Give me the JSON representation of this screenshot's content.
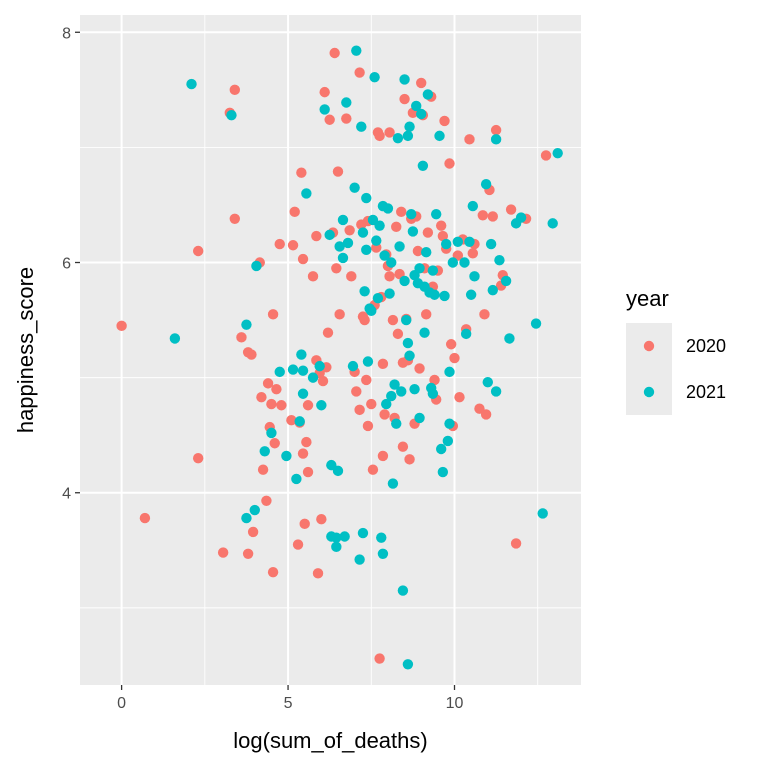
{
  "chart_data": {
    "type": "scatter",
    "title": "",
    "xlabel": "log(sum_of_deaths)",
    "ylabel": "happiness_score",
    "xlim": [
      -1.25,
      13.8
    ],
    "ylim": [
      2.33,
      8.15
    ],
    "xticks": [
      0,
      5,
      10
    ],
    "yticks": [
      4,
      6,
      8
    ],
    "x_minor_ticks": [
      2.5,
      7.5,
      12.5
    ],
    "y_minor_ticks": [
      3,
      5,
      7
    ],
    "grid": true,
    "legend": {
      "title": "year",
      "placement": "right"
    },
    "series": [
      {
        "name": "2020",
        "color": "#F8766D",
        "points": [
          [
            0.0,
            5.45
          ],
          [
            0.7,
            3.78
          ],
          [
            2.3,
            6.1
          ],
          [
            2.3,
            4.3
          ],
          [
            3.05,
            3.48
          ],
          [
            3.25,
            7.3
          ],
          [
            3.4,
            7.5
          ],
          [
            3.4,
            6.38
          ],
          [
            3.6,
            5.35
          ],
          [
            3.8,
            5.22
          ],
          [
            3.8,
            3.47
          ],
          [
            3.9,
            5.2
          ],
          [
            3.95,
            3.66
          ],
          [
            4.15,
            6.0
          ],
          [
            4.2,
            4.83
          ],
          [
            4.25,
            4.2
          ],
          [
            4.35,
            3.93
          ],
          [
            4.4,
            4.95
          ],
          [
            4.45,
            4.57
          ],
          [
            4.5,
            4.77
          ],
          [
            4.55,
            5.55
          ],
          [
            4.55,
            3.31
          ],
          [
            4.6,
            4.43
          ],
          [
            4.65,
            4.9
          ],
          [
            4.75,
            6.16
          ],
          [
            4.8,
            4.76
          ],
          [
            5.1,
            4.63
          ],
          [
            5.15,
            6.15
          ],
          [
            5.2,
            6.44
          ],
          [
            5.3,
            3.55
          ],
          [
            5.35,
            4.61
          ],
          [
            5.4,
            6.78
          ],
          [
            5.45,
            6.03
          ],
          [
            5.45,
            4.34
          ],
          [
            5.5,
            3.73
          ],
          [
            5.55,
            4.44
          ],
          [
            5.6,
            4.76
          ],
          [
            5.6,
            4.18
          ],
          [
            5.75,
            5.88
          ],
          [
            5.85,
            6.23
          ],
          [
            5.85,
            5.15
          ],
          [
            5.9,
            3.3
          ],
          [
            5.95,
            5.04
          ],
          [
            6.0,
            3.77
          ],
          [
            6.05,
            4.97
          ],
          [
            6.1,
            7.48
          ],
          [
            6.15,
            5.09
          ],
          [
            6.2,
            5.39
          ],
          [
            6.25,
            7.24
          ],
          [
            6.35,
            6.26
          ],
          [
            6.4,
            7.82
          ],
          [
            6.45,
            5.95
          ],
          [
            6.5,
            6.79
          ],
          [
            6.55,
            5.55
          ],
          [
            6.75,
            7.25
          ],
          [
            6.85,
            6.28
          ],
          [
            6.9,
            5.88
          ],
          [
            7.0,
            5.05
          ],
          [
            7.05,
            4.88
          ],
          [
            7.15,
            7.65
          ],
          [
            7.15,
            4.72
          ],
          [
            7.2,
            6.33
          ],
          [
            7.25,
            5.53
          ],
          [
            7.3,
            5.5
          ],
          [
            7.35,
            4.98
          ],
          [
            7.4,
            6.36
          ],
          [
            7.4,
            4.58
          ],
          [
            7.5,
            4.77
          ],
          [
            7.55,
            4.2
          ],
          [
            7.6,
            5.63
          ],
          [
            7.65,
            6.13
          ],
          [
            7.7,
            7.13
          ],
          [
            7.75,
            7.1
          ],
          [
            7.75,
            2.56
          ],
          [
            7.8,
            5.7
          ],
          [
            7.85,
            5.12
          ],
          [
            7.85,
            4.32
          ],
          [
            7.9,
            4.68
          ],
          [
            7.95,
            6.07
          ],
          [
            8.0,
            5.97
          ],
          [
            8.05,
            7.13
          ],
          [
            8.05,
            5.88
          ],
          [
            8.15,
            5.5
          ],
          [
            8.2,
            4.65
          ],
          [
            8.25,
            6.31
          ],
          [
            8.3,
            5.38
          ],
          [
            8.35,
            5.9
          ],
          [
            8.4,
            6.44
          ],
          [
            8.45,
            5.13
          ],
          [
            8.45,
            4.4
          ],
          [
            8.5,
            7.42
          ],
          [
            8.55,
            5.51
          ],
          [
            8.6,
            5.15
          ],
          [
            8.65,
            4.29
          ],
          [
            8.7,
            6.38
          ],
          [
            8.75,
            7.3
          ],
          [
            8.8,
            4.6
          ],
          [
            8.85,
            6.4
          ],
          [
            8.9,
            6.1
          ],
          [
            8.95,
            5.08
          ],
          [
            9.0,
            7.56
          ],
          [
            9.05,
            7.28
          ],
          [
            9.1,
            5.95
          ],
          [
            9.15,
            5.55
          ],
          [
            9.2,
            6.26
          ],
          [
            9.3,
            7.44
          ],
          [
            9.35,
            5.79
          ],
          [
            9.4,
            4.98
          ],
          [
            9.45,
            4.81
          ],
          [
            9.5,
            5.93
          ],
          [
            9.6,
            6.32
          ],
          [
            9.65,
            6.23
          ],
          [
            9.7,
            7.23
          ],
          [
            9.75,
            6.12
          ],
          [
            9.85,
            6.86
          ],
          [
            9.9,
            5.29
          ],
          [
            9.95,
            4.58
          ],
          [
            10.0,
            5.17
          ],
          [
            10.1,
            6.06
          ],
          [
            10.15,
            4.83
          ],
          [
            10.25,
            6.2
          ],
          [
            10.35,
            5.42
          ],
          [
            10.45,
            7.07
          ],
          [
            10.55,
            6.08
          ],
          [
            10.6,
            6.16
          ],
          [
            10.75,
            4.73
          ],
          [
            10.85,
            6.41
          ],
          [
            10.9,
            5.55
          ],
          [
            10.95,
            4.68
          ],
          [
            11.05,
            6.63
          ],
          [
            11.15,
            6.4
          ],
          [
            11.25,
            7.15
          ],
          [
            11.4,
            5.8
          ],
          [
            11.45,
            5.89
          ],
          [
            11.7,
            6.46
          ],
          [
            11.85,
            3.56
          ],
          [
            12.15,
            6.38
          ],
          [
            12.75,
            6.93
          ]
        ]
      },
      {
        "name": "2021",
        "color": "#00BFC4",
        "points": [
          [
            1.6,
            5.34
          ],
          [
            2.1,
            7.55
          ],
          [
            3.3,
            7.28
          ],
          [
            3.75,
            5.46
          ],
          [
            3.75,
            3.78
          ],
          [
            4.0,
            3.85
          ],
          [
            4.05,
            5.97
          ],
          [
            4.3,
            4.36
          ],
          [
            4.5,
            4.52
          ],
          [
            4.75,
            5.05
          ],
          [
            4.95,
            4.32
          ],
          [
            5.15,
            5.07
          ],
          [
            5.25,
            4.12
          ],
          [
            5.35,
            4.62
          ],
          [
            5.4,
            5.2
          ],
          [
            5.45,
            4.86
          ],
          [
            5.45,
            5.06
          ],
          [
            5.55,
            6.6
          ],
          [
            5.75,
            5.0
          ],
          [
            5.95,
            5.1
          ],
          [
            6.0,
            4.76
          ],
          [
            6.1,
            7.33
          ],
          [
            6.25,
            6.24
          ],
          [
            6.3,
            4.24
          ],
          [
            6.3,
            3.62
          ],
          [
            6.45,
            3.61
          ],
          [
            6.45,
            3.53
          ],
          [
            6.5,
            4.19
          ],
          [
            6.55,
            6.14
          ],
          [
            6.65,
            6.37
          ],
          [
            6.65,
            6.04
          ],
          [
            6.7,
            3.62
          ],
          [
            6.75,
            7.39
          ],
          [
            6.8,
            6.17
          ],
          [
            6.95,
            5.1
          ],
          [
            7.0,
            6.65
          ],
          [
            7.05,
            7.84
          ],
          [
            7.15,
            3.42
          ],
          [
            7.2,
            7.18
          ],
          [
            7.25,
            6.26
          ],
          [
            7.25,
            3.65
          ],
          [
            7.3,
            5.75
          ],
          [
            7.35,
            6.56
          ],
          [
            7.35,
            6.11
          ],
          [
            7.4,
            5.14
          ],
          [
            7.45,
            5.6
          ],
          [
            7.5,
            5.58
          ],
          [
            7.55,
            6.37
          ],
          [
            7.6,
            7.61
          ],
          [
            7.65,
            6.19
          ],
          [
            7.7,
            5.69
          ],
          [
            7.75,
            6.32
          ],
          [
            7.8,
            3.61
          ],
          [
            7.85,
            6.49
          ],
          [
            7.85,
            3.47
          ],
          [
            7.9,
            6.06
          ],
          [
            7.95,
            4.77
          ],
          [
            8.0,
            6.47
          ],
          [
            8.05,
            5.73
          ],
          [
            8.1,
            6.0
          ],
          [
            8.1,
            4.84
          ],
          [
            8.15,
            4.08
          ],
          [
            8.2,
            4.94
          ],
          [
            8.25,
            4.6
          ],
          [
            8.3,
            7.08
          ],
          [
            8.35,
            6.14
          ],
          [
            8.4,
            4.88
          ],
          [
            8.45,
            3.15
          ],
          [
            8.5,
            7.59
          ],
          [
            8.5,
            5.84
          ],
          [
            8.55,
            5.5
          ],
          [
            8.6,
            7.1
          ],
          [
            8.6,
            5.3
          ],
          [
            8.65,
            7.18
          ],
          [
            8.65,
            5.19
          ],
          [
            8.6,
            2.51
          ],
          [
            8.7,
            6.42
          ],
          [
            8.75,
            6.27
          ],
          [
            8.8,
            5.89
          ],
          [
            8.8,
            4.9
          ],
          [
            8.85,
            7.36
          ],
          [
            8.9,
            5.82
          ],
          [
            8.95,
            5.95
          ],
          [
            8.95,
            4.65
          ],
          [
            9.0,
            7.29
          ],
          [
            9.05,
            6.84
          ],
          [
            9.1,
            5.79
          ],
          [
            9.1,
            5.39
          ],
          [
            9.15,
            6.09
          ],
          [
            9.2,
            7.46
          ],
          [
            9.25,
            5.74
          ],
          [
            9.3,
            4.91
          ],
          [
            9.35,
            5.93
          ],
          [
            9.35,
            4.86
          ],
          [
            9.4,
            5.72
          ],
          [
            9.45,
            6.42
          ],
          [
            9.55,
            7.1
          ],
          [
            9.6,
            4.38
          ],
          [
            9.65,
            4.18
          ],
          [
            9.7,
            5.71
          ],
          [
            9.75,
            6.16
          ],
          [
            9.8,
            4.45
          ],
          [
            9.85,
            4.6
          ],
          [
            9.85,
            5.05
          ],
          [
            9.95,
            6.0
          ],
          [
            10.1,
            6.18
          ],
          [
            10.3,
            6.0
          ],
          [
            10.35,
            5.38
          ],
          [
            10.45,
            6.18
          ],
          [
            10.5,
            5.72
          ],
          [
            10.55,
            6.49
          ],
          [
            10.6,
            5.88
          ],
          [
            10.95,
            6.68
          ],
          [
            11.0,
            4.96
          ],
          [
            11.1,
            6.16
          ],
          [
            11.15,
            5.76
          ],
          [
            11.25,
            7.07
          ],
          [
            11.25,
            4.88
          ],
          [
            11.35,
            6.02
          ],
          [
            11.55,
            5.84
          ],
          [
            11.65,
            5.34
          ],
          [
            11.85,
            6.34
          ],
          [
            12.0,
            6.39
          ],
          [
            12.45,
            5.47
          ],
          [
            12.65,
            3.82
          ],
          [
            12.95,
            6.34
          ],
          [
            13.1,
            6.95
          ]
        ]
      }
    ]
  }
}
